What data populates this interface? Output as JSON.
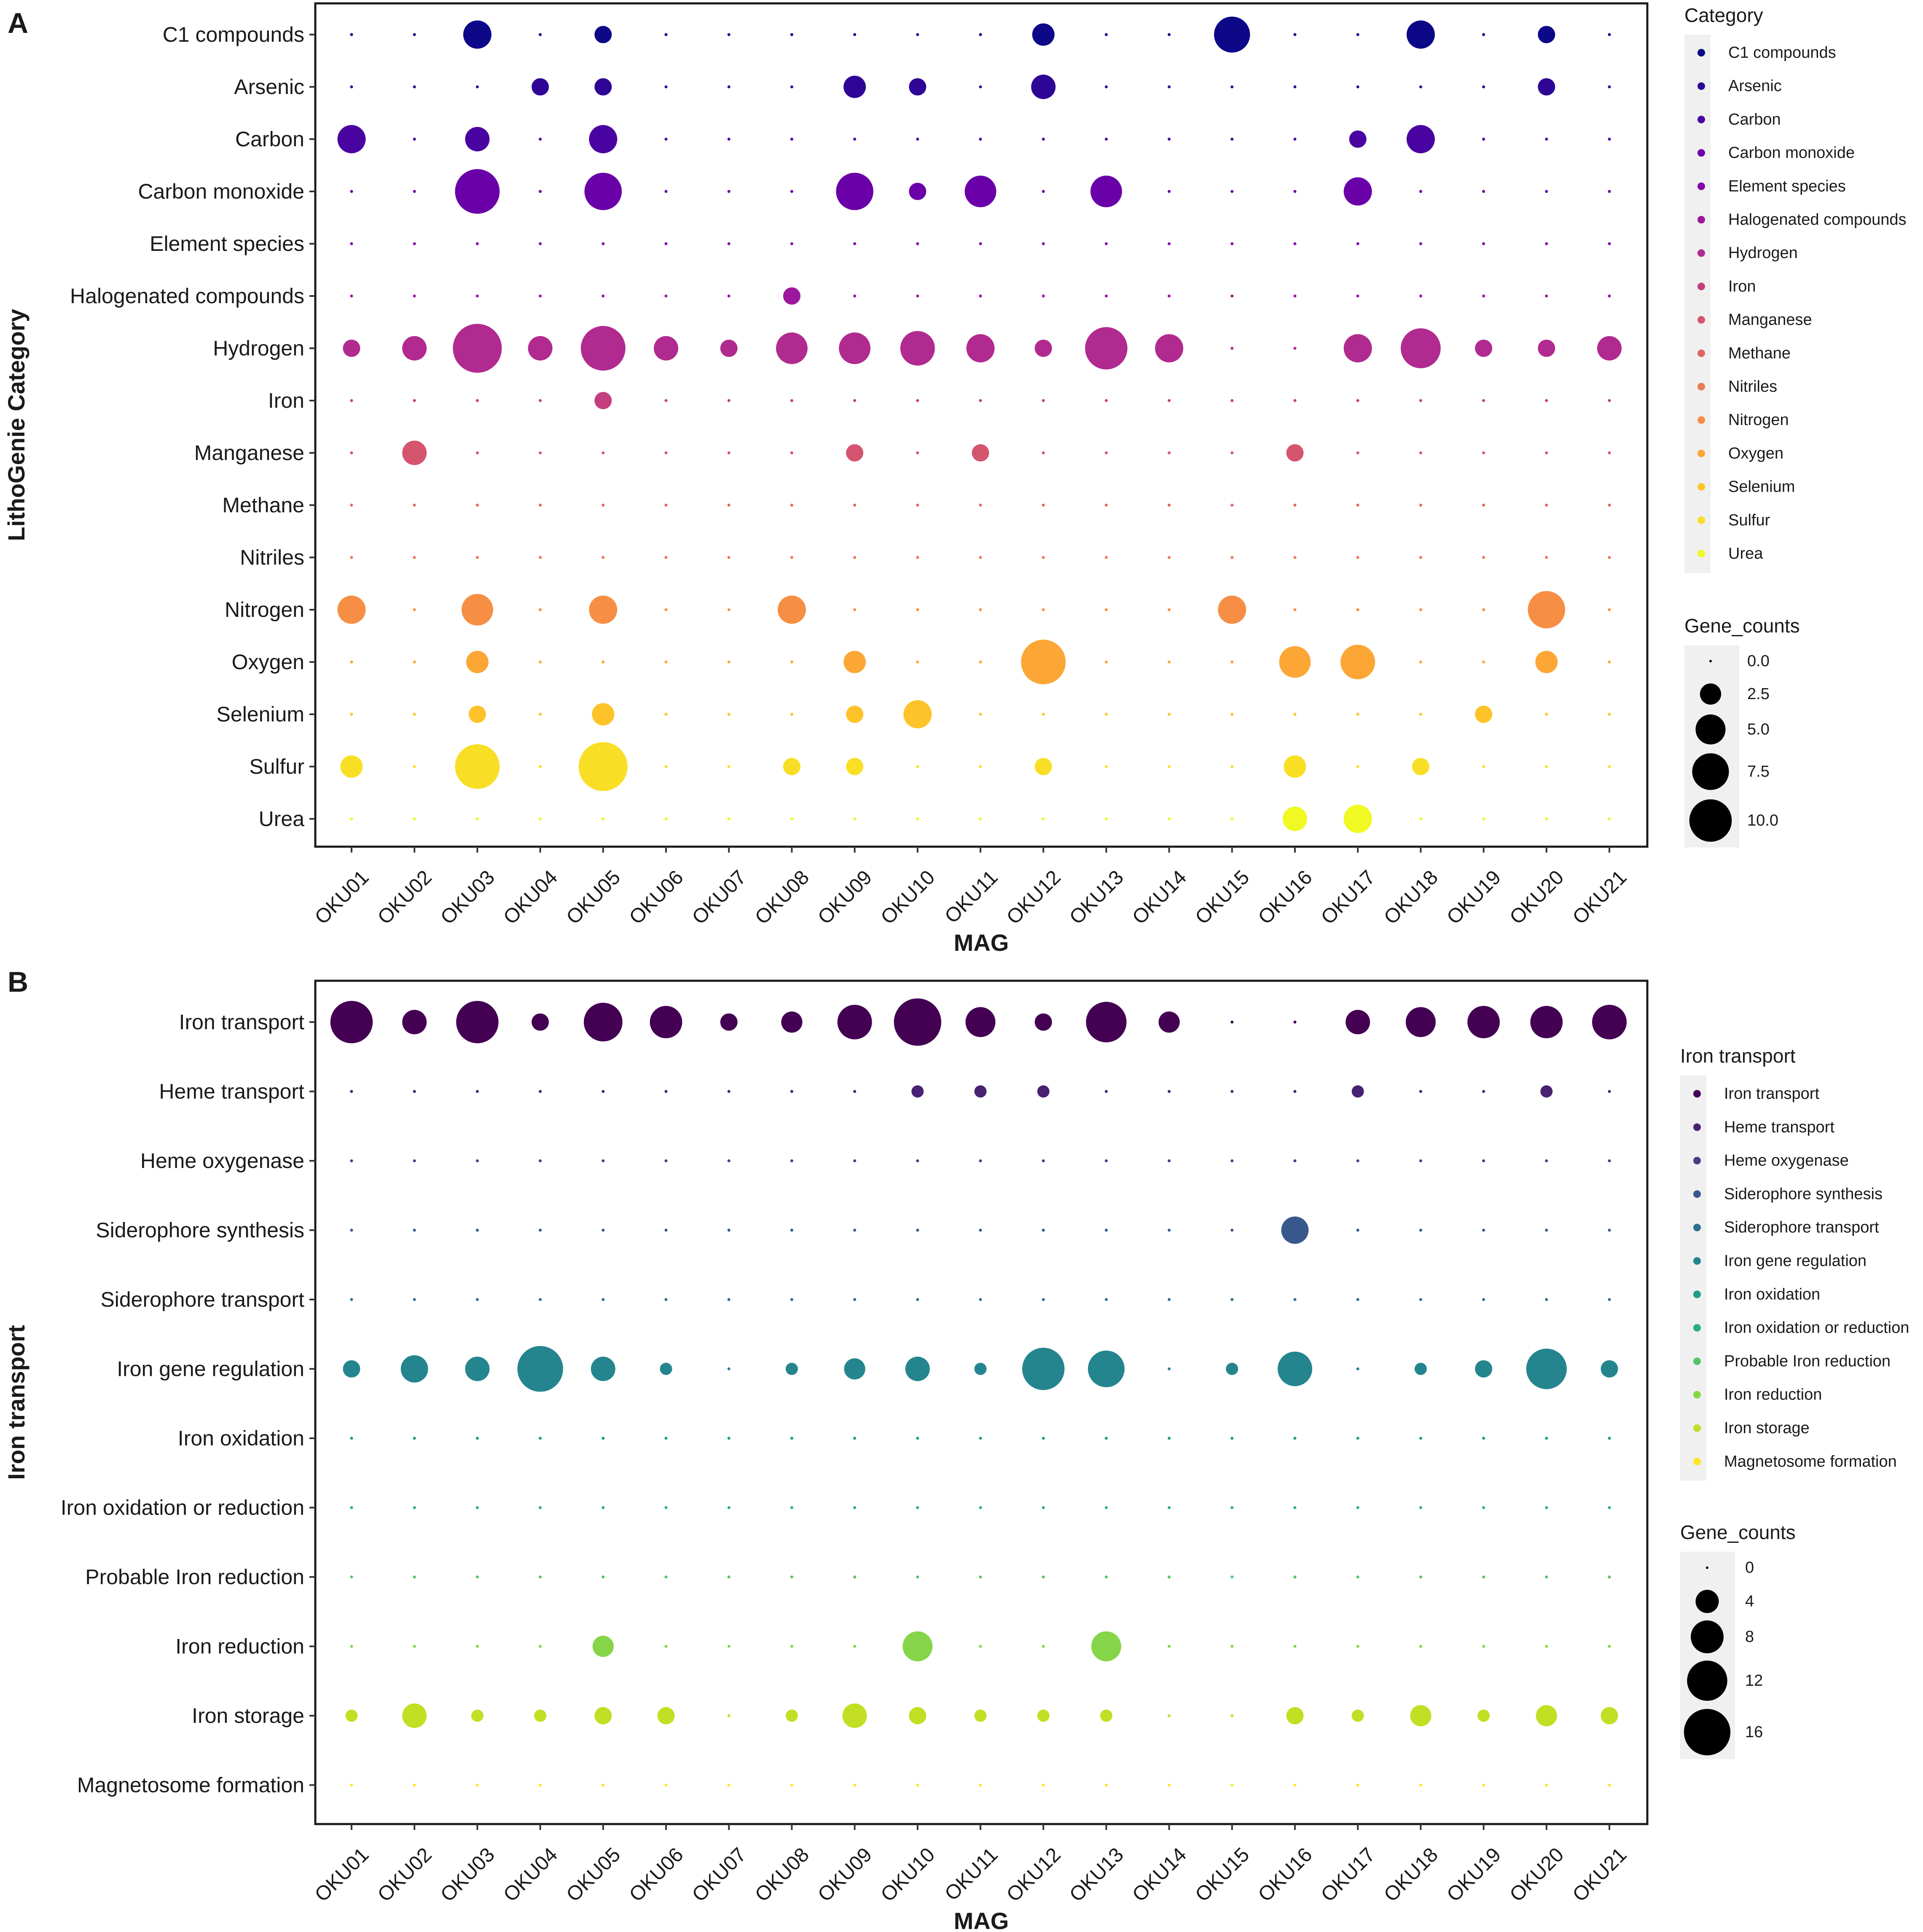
{
  "chart_data": [
    {
      "type": "scatter",
      "panel": "A",
      "xlabel": "MAG",
      "ylabel": "LithoGenie Category",
      "categories": [
        "OKU01",
        "OKU02",
        "OKU03",
        "OKU04",
        "OKU05",
        "OKU06",
        "OKU07",
        "OKU08",
        "OKU09",
        "OKU10",
        "OKU11",
        "OKU12",
        "OKU13",
        "OKU14",
        "OKU15",
        "OKU16",
        "OKU17",
        "OKU18",
        "OKU19",
        "OKU20",
        "OKU21"
      ],
      "rows": [
        {
          "name": "C1 compounds",
          "color": "#0d0887",
          "values": [
            0,
            0,
            4,
            0,
            1.5,
            0,
            0,
            0,
            0,
            0,
            0,
            2.5,
            0,
            0,
            6.5,
            0,
            0,
            4,
            0,
            1.5,
            0
          ]
        },
        {
          "name": "Arsenic",
          "color": "#2f0596",
          "values": [
            0,
            0,
            0,
            1.5,
            1.5,
            0,
            0,
            0,
            2.5,
            1.5,
            0,
            3,
            0,
            0,
            0,
            0,
            0,
            0,
            0,
            1.5,
            0
          ]
        },
        {
          "name": "Carbon",
          "color": "#4903a0",
          "values": [
            4,
            0,
            3,
            0,
            4,
            0,
            0,
            0,
            0,
            0,
            0,
            0,
            0,
            0,
            0,
            0,
            1.5,
            4,
            0,
            0,
            0
          ]
        },
        {
          "name": "Carbon monoxide",
          "color": "#6a00a8",
          "values": [
            0,
            0,
            10,
            0,
            7,
            0,
            0,
            0,
            7,
            1.5,
            5,
            0,
            5,
            0,
            0,
            0,
            4,
            0,
            0,
            0,
            0
          ]
        },
        {
          "name": "Element species",
          "color": "#8405a7",
          "values": [
            0,
            0,
            0,
            0,
            0,
            0,
            0,
            0,
            0,
            0,
            0,
            0,
            0,
            0,
            0,
            0,
            0,
            0,
            0,
            0,
            0
          ]
        },
        {
          "name": "Halogenated compounds",
          "color": "#9c179e",
          "values": [
            0,
            0,
            0,
            0,
            0,
            0,
            0,
            1.5,
            0,
            0,
            0,
            0,
            0,
            0,
            0,
            0,
            0,
            0,
            0,
            0,
            0
          ]
        },
        {
          "name": "Hydrogen",
          "color": "#b12a90",
          "values": [
            1.5,
            3,
            12,
            3,
            10,
            3,
            1.5,
            5,
            5,
            6,
            4,
            1.5,
            9,
            4,
            0,
            0,
            4,
            8,
            1.5,
            1.5,
            3
          ]
        },
        {
          "name": "Iron",
          "color": "#c43e7f",
          "values": [
            0,
            0,
            0,
            0,
            1.5,
            0,
            0,
            0,
            0,
            0,
            0,
            0,
            0,
            0,
            0,
            0,
            0,
            0,
            0,
            0,
            0
          ]
        },
        {
          "name": "Manganese",
          "color": "#d5546e",
          "values": [
            0,
            3,
            0,
            0,
            0,
            0,
            0,
            0,
            1.5,
            0,
            1.5,
            0,
            0,
            0,
            0,
            1.5,
            0,
            0,
            0,
            0,
            0
          ]
        },
        {
          "name": "Methane",
          "color": "#e16462",
          "values": [
            0,
            0,
            0,
            0,
            0,
            0,
            0,
            0,
            0,
            0,
            0,
            0,
            0,
            0,
            0,
            0,
            0,
            0,
            0,
            0,
            0
          ]
        },
        {
          "name": "Nitriles",
          "color": "#ed7953",
          "values": [
            0,
            0,
            0,
            0,
            0,
            0,
            0,
            0,
            0,
            0,
            0,
            0,
            0,
            0,
            0,
            0,
            0,
            0,
            0,
            0,
            0
          ]
        },
        {
          "name": "Nitrogen",
          "color": "#f68f44",
          "values": [
            4,
            0,
            5,
            0,
            4,
            0,
            0,
            4,
            0,
            0,
            0,
            0,
            0,
            0,
            4,
            0,
            0,
            0,
            0,
            7,
            0
          ]
        },
        {
          "name": "Oxygen",
          "color": "#fca636",
          "values": [
            0,
            0,
            2.5,
            0,
            0,
            0,
            0,
            0,
            2.5,
            0,
            0,
            10,
            0,
            0,
            0,
            5,
            6,
            0,
            0,
            2.5,
            0
          ]
        },
        {
          "name": "Selenium",
          "color": "#fdc328",
          "values": [
            0,
            0,
            1.5,
            0,
            2.5,
            0,
            0,
            0,
            1.5,
            4,
            0,
            0,
            0,
            0,
            0,
            0,
            0,
            0,
            1.5,
            0,
            0
          ]
        },
        {
          "name": "Sulfur",
          "color": "#f8df25",
          "values": [
            2.5,
            0,
            10,
            0,
            12,
            0,
            0,
            1.5,
            1.5,
            0,
            0,
            1.5,
            0,
            0,
            0,
            2.5,
            0,
            1.5,
            0,
            0,
            0
          ]
        },
        {
          "name": "Urea",
          "color": "#f0f921",
          "values": [
            0,
            0,
            0,
            0,
            0,
            0,
            0,
            0,
            0,
            0,
            0,
            0,
            0,
            0,
            0,
            3,
            4,
            0,
            0,
            0,
            0
          ]
        }
      ],
      "legend_color_title": "Category",
      "legend_size_title": "Gene_counts",
      "size_legend": [
        {
          "label": "0.0",
          "value": 0
        },
        {
          "label": "2.5",
          "value": 2.5
        },
        {
          "label": "5.0",
          "value": 5
        },
        {
          "label": "7.5",
          "value": 7.5
        },
        {
          "label": "10.0",
          "value": 10
        }
      ],
      "size_scale_max": 12
    },
    {
      "type": "scatter",
      "panel": "B",
      "xlabel": "MAG",
      "ylabel": "Iron transport",
      "categories": [
        "OKU01",
        "OKU02",
        "OKU03",
        "OKU04",
        "OKU05",
        "OKU06",
        "OKU07",
        "OKU08",
        "OKU09",
        "OKU10",
        "OKU11",
        "OKU12",
        "OKU13",
        "OKU14",
        "OKU15",
        "OKU16",
        "OKU17",
        "OKU18",
        "OKU19",
        "OKU20",
        "OKU21"
      ],
      "rows": [
        {
          "name": "Iron transport",
          "color": "#440154",
          "values": [
            12,
            4,
            12,
            2,
            10,
            7,
            2,
            3,
            8,
            15,
            6,
            2,
            11,
            3,
            0,
            0,
            4,
            6,
            7,
            7,
            8
          ]
        },
        {
          "name": "Heme transport",
          "color": "#482173",
          "values": [
            0,
            0,
            0,
            0,
            0,
            0,
            0,
            0,
            0,
            1,
            1,
            1,
            0,
            0,
            0,
            0,
            1,
            0,
            0,
            1,
            0
          ]
        },
        {
          "name": "Heme oxygenase",
          "color": "#433e85",
          "values": [
            0,
            0,
            0,
            0,
            0,
            0,
            0,
            0,
            0,
            0,
            0,
            0,
            0,
            0,
            0,
            0,
            0,
            0,
            0,
            0,
            0
          ]
        },
        {
          "name": "Siderophore synthesis",
          "color": "#38588c",
          "values": [
            0,
            0,
            0,
            0,
            0,
            0,
            0,
            0,
            0,
            0,
            0,
            0,
            0,
            0,
            0,
            5,
            0,
            0,
            0,
            0,
            0
          ]
        },
        {
          "name": "Siderophore transport",
          "color": "#2d708e",
          "values": [
            0,
            0,
            0,
            0,
            0,
            0,
            0,
            0,
            0,
            0,
            0,
            0,
            0,
            0,
            0,
            0,
            0,
            0,
            0,
            0,
            0
          ]
        },
        {
          "name": "Iron gene regulation",
          "color": "#25858e",
          "values": [
            2,
            5,
            4,
            14,
            4,
            1,
            0,
            1,
            3,
            4,
            1,
            12,
            9,
            0,
            1,
            8,
            0,
            1,
            2,
            11,
            2
          ]
        },
        {
          "name": "Iron oxidation",
          "color": "#1e9b8a",
          "values": [
            0,
            0,
            0,
            0,
            0,
            0,
            0,
            0,
            0,
            0,
            0,
            0,
            0,
            0,
            0,
            0,
            0,
            0,
            0,
            0,
            0
          ]
        },
        {
          "name": "Iron oxidation or reduction",
          "color": "#2ab07f",
          "values": [
            0,
            0,
            0,
            0,
            0,
            0,
            0,
            0,
            0,
            0,
            0,
            0,
            0,
            0,
            0,
            0,
            0,
            0,
            0,
            0,
            0
          ]
        },
        {
          "name": "Probable Iron reduction",
          "color": "#52c569",
          "values": [
            0,
            0,
            0,
            0,
            0,
            0,
            0,
            0,
            0,
            0,
            0,
            0,
            0,
            0,
            0,
            0,
            0,
            0,
            0,
            0,
            0
          ]
        },
        {
          "name": "Iron reduction",
          "color": "#86d549",
          "values": [
            0,
            0,
            0,
            0,
            3,
            0,
            0,
            0,
            0,
            6,
            0,
            0,
            6,
            0,
            0,
            0,
            0,
            0,
            0,
            0,
            0
          ]
        },
        {
          "name": "Iron storage",
          "color": "#c2df23",
          "values": [
            1,
            4,
            1,
            1,
            2,
            2,
            0,
            1,
            4,
            2,
            1,
            1,
            1,
            0,
            0,
            2,
            1,
            3,
            1,
            3,
            2
          ]
        },
        {
          "name": "Magnetosome formation",
          "color": "#fde725",
          "values": [
            0,
            0,
            0,
            0,
            0,
            0,
            0,
            0,
            0,
            0,
            0,
            0,
            0,
            0,
            0,
            0,
            0,
            0,
            0,
            0,
            0
          ]
        }
      ],
      "legend_color_title": "Iron transport",
      "legend_size_title": "Gene_counts",
      "size_legend": [
        {
          "label": "0",
          "value": 0
        },
        {
          "label": "4",
          "value": 4
        },
        {
          "label": "8",
          "value": 8
        },
        {
          "label": "12",
          "value": 12
        },
        {
          "label": "16",
          "value": 16
        }
      ],
      "size_scale_max": 16
    }
  ]
}
